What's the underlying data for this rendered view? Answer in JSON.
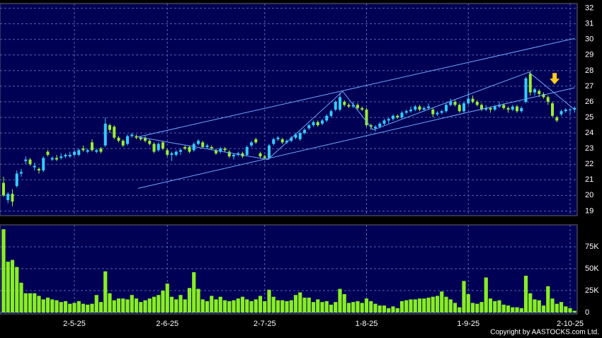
{
  "chart_data": [
    {
      "type": "candlestick",
      "ylim": [
        18.7,
        32.3
      ],
      "yticks": [
        19,
        20,
        21,
        22,
        23,
        24,
        25,
        26,
        27,
        28,
        29,
        30,
        31,
        32
      ],
      "up_color": "#33ccff",
      "down_color": "#99ee33",
      "grid": true,
      "ohlc": [
        [
          20.8,
          21.2,
          19.9,
          20.0
        ],
        [
          19.7,
          20.2,
          19.5,
          20.1
        ],
        [
          20.1,
          20.4,
          19.3,
          19.6
        ],
        [
          20.6,
          21.6,
          20.5,
          21.4
        ],
        [
          21.4,
          21.7,
          21.2,
          21.5
        ],
        [
          22.2,
          22.5,
          22.0,
          22.3
        ],
        [
          22.3,
          22.4,
          21.9,
          22.0
        ],
        [
          21.8,
          22.1,
          21.6,
          21.9
        ],
        [
          21.7,
          21.8,
          21.4,
          21.6
        ],
        [
          21.6,
          22.5,
          21.5,
          22.4
        ],
        [
          22.8,
          22.9,
          22.5,
          22.6
        ],
        [
          22.3,
          22.5,
          22.2,
          22.4
        ],
        [
          22.4,
          22.6,
          22.2,
          22.3
        ],
        [
          22.4,
          22.7,
          22.3,
          22.5
        ],
        [
          22.5,
          22.7,
          22.4,
          22.6
        ],
        [
          22.5,
          22.8,
          22.4,
          22.6
        ],
        [
          22.6,
          22.9,
          22.5,
          22.8
        ],
        [
          22.6,
          23.0,
          22.5,
          22.9
        ],
        [
          23.0,
          23.2,
          22.8,
          22.9
        ],
        [
          22.8,
          23.0,
          22.7,
          22.9
        ],
        [
          23.4,
          23.6,
          22.8,
          22.9
        ],
        [
          22.8,
          23.0,
          22.7,
          22.9
        ],
        [
          23.0,
          23.1,
          22.7,
          22.8
        ],
        [
          23.2,
          25.0,
          23.1,
          24.6
        ],
        [
          24.5,
          24.6,
          24.0,
          24.2
        ],
        [
          24.4,
          24.5,
          23.6,
          23.7
        ],
        [
          23.7,
          23.8,
          23.4,
          23.5
        ],
        [
          23.5,
          23.6,
          23.1,
          23.2
        ],
        [
          23.3,
          23.9,
          23.2,
          23.8
        ],
        [
          23.8,
          24.0,
          23.7,
          23.9
        ],
        [
          23.8,
          23.9,
          23.6,
          23.7
        ],
        [
          23.7,
          23.8,
          23.5,
          23.6
        ],
        [
          23.7,
          23.8,
          23.4,
          23.5
        ],
        [
          23.5,
          23.6,
          23.2,
          23.3
        ],
        [
          23.3,
          23.4,
          22.7,
          22.8
        ],
        [
          22.9,
          23.4,
          22.8,
          23.3
        ],
        [
          23.4,
          23.5,
          22.9,
          23.0
        ],
        [
          22.9,
          23.0,
          22.5,
          22.6
        ],
        [
          22.6,
          22.8,
          22.2,
          22.7
        ],
        [
          22.6,
          22.9,
          22.5,
          22.8
        ],
        [
          22.8,
          23.0,
          22.6,
          22.9
        ],
        [
          23.1,
          23.2,
          22.9,
          23.0
        ],
        [
          23.1,
          23.2,
          22.7,
          22.8
        ],
        [
          22.9,
          23.4,
          22.8,
          23.3
        ],
        [
          23.3,
          23.6,
          23.2,
          23.5
        ],
        [
          23.4,
          23.5,
          23.0,
          23.1
        ],
        [
          23.1,
          23.3,
          23.0,
          23.2
        ],
        [
          23.1,
          23.2,
          22.9,
          23.0
        ],
        [
          22.9,
          23.0,
          22.6,
          22.7
        ],
        [
          22.8,
          23.1,
          22.7,
          23.0
        ],
        [
          23.0,
          23.1,
          22.8,
          22.9
        ],
        [
          22.8,
          22.9,
          22.4,
          22.5
        ],
        [
          22.5,
          22.7,
          22.3,
          22.6
        ],
        [
          22.6,
          22.8,
          22.5,
          22.7
        ],
        [
          22.7,
          22.8,
          22.4,
          22.5
        ],
        [
          22.6,
          23.2,
          22.5,
          23.1
        ],
        [
          23.2,
          23.5,
          23.1,
          23.4
        ],
        [
          23.6,
          23.7,
          23.3,
          23.4
        ],
        [
          22.7,
          22.8,
          22.4,
          22.5
        ],
        [
          22.5,
          22.6,
          22.3,
          22.4
        ],
        [
          22.4,
          23.3,
          22.3,
          23.2
        ],
        [
          23.3,
          23.7,
          23.2,
          23.6
        ],
        [
          23.6,
          23.8,
          23.5,
          23.7
        ],
        [
          23.6,
          23.7,
          23.3,
          23.4
        ],
        [
          23.4,
          23.6,
          23.3,
          23.5
        ],
        [
          23.5,
          23.8,
          23.4,
          23.7
        ],
        [
          23.7,
          24.0,
          23.6,
          23.9
        ],
        [
          23.6,
          24.1,
          23.5,
          24.0
        ],
        [
          24.0,
          24.3,
          23.9,
          24.2
        ],
        [
          24.3,
          24.6,
          24.2,
          24.5
        ],
        [
          24.5,
          24.8,
          24.4,
          24.7
        ],
        [
          24.7,
          24.8,
          24.4,
          24.5
        ],
        [
          24.6,
          24.9,
          24.5,
          24.8
        ],
        [
          24.8,
          25.2,
          24.7,
          25.1
        ],
        [
          25.1,
          25.5,
          25.0,
          25.4
        ],
        [
          25.5,
          26.1,
          25.4,
          26.0
        ],
        [
          25.5,
          26.6,
          25.4,
          26.3
        ],
        [
          26.0,
          26.1,
          25.7,
          25.8
        ],
        [
          25.8,
          25.9,
          25.6,
          25.7
        ],
        [
          25.7,
          26.0,
          25.6,
          25.8
        ],
        [
          25.8,
          25.9,
          25.5,
          25.6
        ],
        [
          25.6,
          25.7,
          25.4,
          25.5
        ],
        [
          25.5,
          25.6,
          24.4,
          24.5
        ],
        [
          24.5,
          24.6,
          24.2,
          24.4
        ],
        [
          24.3,
          24.5,
          24.1,
          24.4
        ],
        [
          24.4,
          24.7,
          24.3,
          24.6
        ],
        [
          24.6,
          24.9,
          24.5,
          24.8
        ],
        [
          24.8,
          25.0,
          24.6,
          24.9
        ],
        [
          24.9,
          25.2,
          24.8,
          25.1
        ],
        [
          25.1,
          25.2,
          24.9,
          25.0
        ],
        [
          25.0,
          25.4,
          24.9,
          25.3
        ],
        [
          25.3,
          25.5,
          25.2,
          25.4
        ],
        [
          25.4,
          25.7,
          25.3,
          25.5
        ],
        [
          25.5,
          25.8,
          25.4,
          25.7
        ],
        [
          25.7,
          25.8,
          25.4,
          25.5
        ],
        [
          25.5,
          25.7,
          25.4,
          25.6
        ],
        [
          25.6,
          25.9,
          25.5,
          25.7
        ],
        [
          25.5,
          25.6,
          25.0,
          25.2
        ],
        [
          25.2,
          25.4,
          25.1,
          25.3
        ],
        [
          25.3,
          25.5,
          25.2,
          25.4
        ],
        [
          25.4,
          25.9,
          25.3,
          25.8
        ],
        [
          25.8,
          26.2,
          25.7,
          26.0
        ],
        [
          26.0,
          26.1,
          25.7,
          25.8
        ],
        [
          25.8,
          25.9,
          25.3,
          25.4
        ],
        [
          25.4,
          26.0,
          25.3,
          25.9
        ],
        [
          25.9,
          26.7,
          25.8,
          26.2
        ],
        [
          26.2,
          26.4,
          25.9,
          26.0
        ],
        [
          26.0,
          26.1,
          25.7,
          25.8
        ],
        [
          25.8,
          25.9,
          25.4,
          25.5
        ],
        [
          25.5,
          25.8,
          25.4,
          25.6
        ],
        [
          25.6,
          25.7,
          25.3,
          25.5
        ],
        [
          25.5,
          25.8,
          25.4,
          25.7
        ],
        [
          25.7,
          26.0,
          25.6,
          25.8
        ],
        [
          25.8,
          25.9,
          25.5,
          25.6
        ],
        [
          25.6,
          25.7,
          25.3,
          25.5
        ],
        [
          25.5,
          25.8,
          25.4,
          25.7
        ],
        [
          25.7,
          25.8,
          25.3,
          25.4
        ],
        [
          25.4,
          25.7,
          25.3,
          25.6
        ],
        [
          26.0,
          27.6,
          25.9,
          27.5
        ],
        [
          27.8,
          28.0,
          26.4,
          26.6
        ],
        [
          26.6,
          26.9,
          26.4,
          26.8
        ],
        [
          26.7,
          26.8,
          26.3,
          26.5
        ],
        [
          26.5,
          26.6,
          26.2,
          26.3
        ],
        [
          26.3,
          26.4,
          25.8,
          26.0
        ],
        [
          25.9,
          26.0,
          25.0,
          25.1
        ],
        [
          25.0,
          25.1,
          24.7,
          24.8
        ],
        [
          25.2,
          25.5,
          25.1,
          25.4
        ],
        [
          25.4,
          25.6,
          25.3,
          25.5
        ],
        [
          25.5,
          25.6,
          25.2,
          25.5
        ],
        [
          25.5,
          25.7,
          25.3,
          25.6
        ]
      ],
      "trendlines": [
        {
          "x": [
            30.4,
            129
          ],
          "y": [
            23.75,
            30.06
          ]
        },
        {
          "x": [
            30.4,
            129
          ],
          "y": [
            20.45,
            26.9
          ]
        },
        {
          "x": [
            30.4,
            59.7,
            76.6,
            83.5,
            118.7,
            129
          ],
          "y": [
            23.75,
            22.3,
            26.67,
            24.2,
            27.9,
            25.5
          ]
        }
      ],
      "line_color": "#6fa8ff",
      "arrow": {
        "x": 124.5,
        "y": 27.3,
        "color": "#ffcc22"
      }
    },
    {
      "type": "bar",
      "color": "#88ee22",
      "ylim": [
        0,
        100000
      ],
      "yticks": [
        0,
        {
          "value": 25000,
          "label": "25K"
        },
        {
          "value": 50000,
          "label": "50K"
        },
        {
          "value": 75000,
          "label": "75K"
        }
      ],
      "xticks": [
        {
          "value": 16,
          "label": "2-5-25"
        },
        {
          "value": 37,
          "label": "2-6-25"
        },
        {
          "value": 59,
          "label": "2-7-25"
        },
        {
          "value": 82,
          "label": "1-8-25"
        },
        {
          "value": 105,
          "label": "1-9-25"
        },
        {
          "value": 128,
          "label": "2-10-25"
        }
      ],
      "values": [
        95000,
        58000,
        60000,
        52000,
        34000,
        22000,
        22000,
        22000,
        19000,
        15000,
        17000,
        15000,
        14000,
        12000,
        13000,
        10000,
        11000,
        13000,
        10000,
        9000,
        10000,
        20000,
        12000,
        47000,
        22000,
        14000,
        16000,
        16000,
        15000,
        20000,
        16000,
        12000,
        14000,
        16000,
        18000,
        20000,
        25000,
        33000,
        18000,
        15000,
        20000,
        15000,
        28000,
        46000,
        27000,
        15000,
        13000,
        19000,
        15000,
        18000,
        14000,
        13000,
        14000,
        16000,
        18000,
        15000,
        13000,
        15000,
        19000,
        13000,
        26000,
        18000,
        14000,
        14000,
        13000,
        14000,
        20000,
        23000,
        17000,
        17000,
        12000,
        15000,
        12000,
        13000,
        9000,
        12000,
        27000,
        21000,
        11000,
        12000,
        13000,
        11000,
        16000,
        13000,
        10000,
        8000,
        8000,
        5000,
        7000,
        5000,
        13000,
        14000,
        15000,
        15000,
        16000,
        16000,
        17000,
        18000,
        19000,
        24000,
        18000,
        15000,
        11000,
        6000,
        36000,
        21000,
        11000,
        10000,
        12000,
        40000,
        16000,
        13000,
        14000,
        9000,
        8000,
        6000,
        6000,
        5000,
        42000,
        22000,
        15000,
        14000,
        8000,
        30000,
        16000,
        10000,
        12000,
        7000,
        5000,
        2000
      ]
    }
  ],
  "footer": "Copyright by AASTOCKS.com Ltd."
}
